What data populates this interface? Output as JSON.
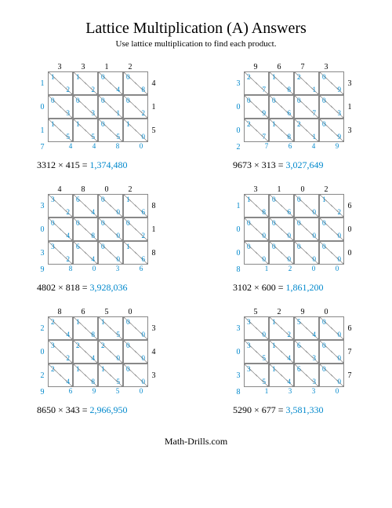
{
  "title": "Lattice Multiplication (A) Answers",
  "subtitle": "Use lattice multiplication to find each product.",
  "footer": "Math-Drills.com",
  "problems": [
    {
      "top": [
        "3",
        "3",
        "1",
        "2"
      ],
      "right": [
        "4",
        "1",
        "5"
      ],
      "left": [
        "1",
        "0",
        "1"
      ],
      "bottom": [
        "4",
        "4",
        "8",
        "0"
      ],
      "cells": [
        [
          [
            "1",
            "2"
          ],
          [
            "1",
            "2"
          ],
          [
            "0",
            "4"
          ],
          [
            "0",
            "8"
          ]
        ],
        [
          [
            "0",
            "3"
          ],
          [
            "0",
            "3"
          ],
          [
            "0",
            "1"
          ],
          [
            "0",
            "2"
          ]
        ],
        [
          [
            "1",
            "5"
          ],
          [
            "1",
            "5"
          ],
          [
            "0",
            "5"
          ],
          [
            "1",
            "0"
          ]
        ]
      ],
      "corner": "7",
      "eq": "3312 × 415 = ",
      "ans": "1,374,480"
    },
    {
      "top": [
        "9",
        "6",
        "7",
        "3"
      ],
      "right": [
        "3",
        "1",
        "3"
      ],
      "left": [
        "3",
        "0",
        "0"
      ],
      "bottom": [
        "7",
        "6",
        "4",
        "9"
      ],
      "cells": [
        [
          [
            "2",
            "7"
          ],
          [
            "1",
            "8"
          ],
          [
            "2",
            "1"
          ],
          [
            "0",
            "9"
          ]
        ],
        [
          [
            "0",
            "9"
          ],
          [
            "0",
            "6"
          ],
          [
            "0",
            "7"
          ],
          [
            "0",
            "3"
          ]
        ],
        [
          [
            "2",
            "7"
          ],
          [
            "1",
            "8"
          ],
          [
            "2",
            "1"
          ],
          [
            "0",
            "9"
          ]
        ]
      ],
      "corner": "2",
      "eq": "9673 × 313 = ",
      "ans": "3,027,649"
    },
    {
      "top": [
        "4",
        "8",
        "0",
        "2"
      ],
      "right": [
        "8",
        "1",
        "8"
      ],
      "left": [
        "3",
        "0",
        "3"
      ],
      "bottom": [
        "8",
        "0",
        "3",
        "6"
      ],
      "cells": [
        [
          [
            "3",
            "2"
          ],
          [
            "6",
            "4"
          ],
          [
            "0",
            "0"
          ],
          [
            "1",
            "6"
          ]
        ],
        [
          [
            "0",
            "4"
          ],
          [
            "0",
            "8"
          ],
          [
            "0",
            "0"
          ],
          [
            "0",
            "2"
          ]
        ],
        [
          [
            "3",
            "2"
          ],
          [
            "6",
            "4"
          ],
          [
            "0",
            "0"
          ],
          [
            "1",
            "6"
          ]
        ]
      ],
      "corner": "9",
      "eq": "4802 × 818 = ",
      "ans": "3,928,036"
    },
    {
      "top": [
        "3",
        "1",
        "0",
        "2"
      ],
      "right": [
        "6",
        "0",
        "0"
      ],
      "left": [
        "1",
        "0",
        "0"
      ],
      "bottom": [
        "1",
        "2",
        "0",
        "0"
      ],
      "cells": [
        [
          [
            "1",
            "8"
          ],
          [
            "0",
            "6"
          ],
          [
            "0",
            "0"
          ],
          [
            "1",
            "2"
          ]
        ],
        [
          [
            "0",
            "0"
          ],
          [
            "0",
            "0"
          ],
          [
            "0",
            "0"
          ],
          [
            "0",
            "0"
          ]
        ],
        [
          [
            "0",
            "0"
          ],
          [
            "0",
            "0"
          ],
          [
            "0",
            "0"
          ],
          [
            "0",
            "0"
          ]
        ]
      ],
      "corner": "8",
      "eq": "3102 × 600 = ",
      "ans": "1,861,200"
    },
    {
      "top": [
        "8",
        "6",
        "5",
        "0"
      ],
      "right": [
        "3",
        "4",
        "3"
      ],
      "left": [
        "2",
        "0",
        "2"
      ],
      "bottom": [
        "6",
        "9",
        "5",
        "0"
      ],
      "cells": [
        [
          [
            "2",
            "4"
          ],
          [
            "1",
            "8"
          ],
          [
            "1",
            "5"
          ],
          [
            "0",
            "0"
          ]
        ],
        [
          [
            "3",
            "2"
          ],
          [
            "2",
            "4"
          ],
          [
            "2",
            "0"
          ],
          [
            "0",
            "0"
          ]
        ],
        [
          [
            "2",
            "4"
          ],
          [
            "1",
            "8"
          ],
          [
            "1",
            "5"
          ],
          [
            "0",
            "0"
          ]
        ]
      ],
      "corner": "9",
      "eq": "8650 × 343 = ",
      "ans": "2,966,950"
    },
    {
      "top": [
        "5",
        "2",
        "9",
        "0"
      ],
      "right": [
        "6",
        "7",
        "7"
      ],
      "left": [
        "3",
        "0",
        "3"
      ],
      "bottom": [
        "1",
        "3",
        "3",
        "0"
      ],
      "cells": [
        [
          [
            "3",
            "0"
          ],
          [
            "1",
            "2"
          ],
          [
            "5",
            "4"
          ],
          [
            "0",
            "0"
          ]
        ],
        [
          [
            "3",
            "5"
          ],
          [
            "1",
            "4"
          ],
          [
            "6",
            "3"
          ],
          [
            "0",
            "0"
          ]
        ],
        [
          [
            "3",
            "5"
          ],
          [
            "1",
            "4"
          ],
          [
            "6",
            "3"
          ],
          [
            "0",
            "0"
          ]
        ]
      ],
      "corner": "8",
      "eq": "5290 × 677 = ",
      "ans": "3,581,330"
    }
  ]
}
